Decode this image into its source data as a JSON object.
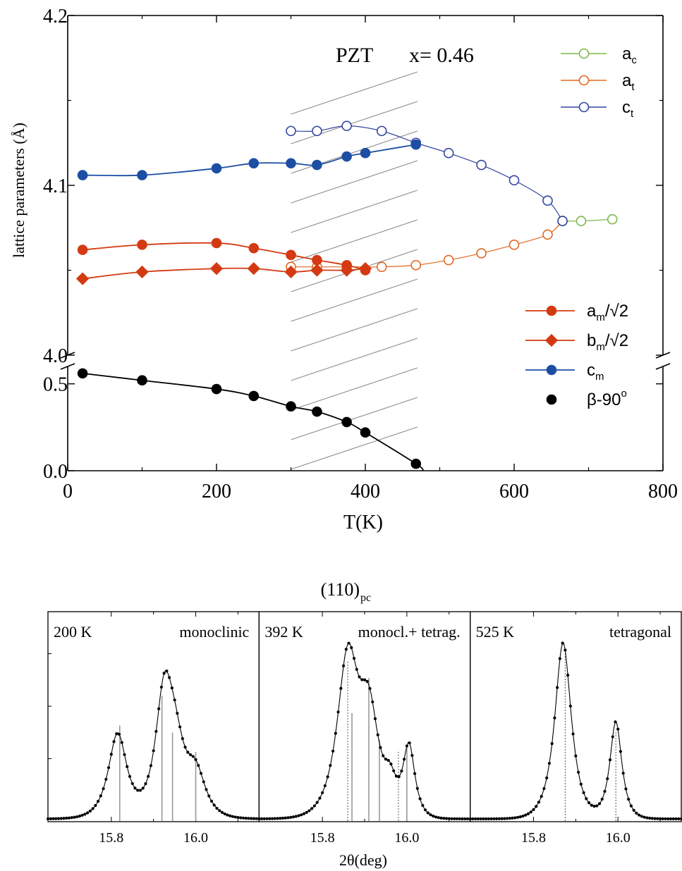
{
  "chart_data": [
    {
      "type": "line",
      "title": "PZT",
      "annotation": "x= 0.46",
      "xlabel": "T(K)",
      "ylabel": "lattice parameters (Å)",
      "xlim": [
        0,
        800
      ],
      "xticks": [
        "0",
        "200",
        "400",
        "600",
        "800"
      ],
      "upper_ylim": [
        4.0,
        4.2
      ],
      "upper_yticks": [
        "4.0",
        "4.1",
        "4.2"
      ],
      "lower_ylim": [
        0.0,
        0.6
      ],
      "lower_yticks": [
        "0.0",
        "0.5"
      ],
      "axis_break": true,
      "hatched_region_x": [
        300,
        470
      ],
      "legend_top": [
        {
          "base": "a",
          "sub": "c",
          "color": "#7db84c",
          "marker": "open-circle"
        },
        {
          "base": "a",
          "sub": "t",
          "color": "#e2681f",
          "marker": "open-circle"
        },
        {
          "base": "c",
          "sub": "t",
          "color": "#3344a0",
          "marker": "open-circle"
        }
      ],
      "legend_bottom": [
        {
          "base": "a",
          "sub": "m",
          "tail": "/√2",
          "color": "#d43a12",
          "marker": "circle"
        },
        {
          "base": "b",
          "sub": "m",
          "tail": "/√2",
          "color": "#d43a12",
          "marker": "diamond"
        },
        {
          "base": "c",
          "sub": "m",
          "tail": "",
          "color": "#1c4ea3",
          "marker": "circle"
        },
        {
          "base": "β-90",
          "sup": "o",
          "color": "#000000",
          "marker": "circle"
        }
      ],
      "series": [
        {
          "key": "am",
          "axis": "upper",
          "color": "#d43a12",
          "marker": "circle",
          "filled": true,
          "x": [
            20,
            100,
            200,
            250,
            300,
            335,
            375,
            400
          ],
          "y": [
            4.062,
            4.065,
            4.066,
            4.063,
            4.059,
            4.056,
            4.053,
            4.05
          ]
        },
        {
          "key": "bm",
          "axis": "upper",
          "color": "#d43a12",
          "marker": "diamond",
          "filled": true,
          "x": [
            20,
            100,
            200,
            250,
            300,
            335,
            375,
            400
          ],
          "y": [
            4.045,
            4.049,
            4.051,
            4.051,
            4.049,
            4.05,
            4.05,
            4.051
          ]
        },
        {
          "key": "cm",
          "axis": "upper",
          "color": "#1c4ea3",
          "marker": "circle",
          "filled": true,
          "x": [
            20,
            100,
            200,
            250,
            300,
            335,
            375,
            400,
            468
          ],
          "y": [
            4.106,
            4.106,
            4.11,
            4.113,
            4.113,
            4.112,
            4.117,
            4.119,
            4.124
          ]
        },
        {
          "key": "ct",
          "axis": "upper",
          "color": "#3344a0",
          "marker": "circle",
          "filled": false,
          "x": [
            300,
            335,
            375,
            422,
            468,
            512,
            556,
            600,
            645,
            665
          ],
          "y": [
            4.132,
            4.132,
            4.135,
            4.132,
            4.125,
            4.119,
            4.112,
            4.103,
            4.091,
            4.079
          ]
        },
        {
          "key": "at",
          "axis": "upper",
          "color": "#e2681f",
          "marker": "circle",
          "filled": false,
          "x": [
            300,
            335,
            375,
            422,
            468,
            512,
            556,
            600,
            645,
            665
          ],
          "y": [
            4.052,
            4.052,
            4.052,
            4.052,
            4.053,
            4.056,
            4.06,
            4.065,
            4.071,
            4.079
          ]
        },
        {
          "key": "ac",
          "axis": "upper",
          "color": "#7db84c",
          "marker": "circle",
          "filled": false,
          "x": [
            665,
            690,
            732
          ],
          "y": [
            4.079,
            4.079,
            4.08
          ]
        },
        {
          "key": "beta",
          "axis": "lower",
          "color": "#000000",
          "marker": "circle",
          "filled": true,
          "x": [
            20,
            100,
            200,
            250,
            300,
            335,
            375,
            400,
            468
          ],
          "y": [
            0.56,
            0.52,
            0.47,
            0.43,
            0.37,
            0.34,
            0.28,
            0.22,
            0.04
          ]
        }
      ]
    },
    {
      "type": "line",
      "title": "(110)",
      "title_sub": "pc",
      "xlabel": "2θ(deg)",
      "xlim": [
        15.65,
        16.15
      ],
      "xticks": [
        "15.8",
        "16.0"
      ],
      "panels": [
        {
          "temperature": "200 K",
          "phase": "monoclinic",
          "peaks": [
            {
              "center": 15.815,
              "height": 0.48,
              "width": 0.028
            },
            {
              "center": 15.925,
              "height": 0.62,
              "width": 0.026
            },
            {
              "center": 15.95,
              "height": 0.33,
              "width": 0.03
            },
            {
              "center": 16.0,
              "height": 0.24,
              "width": 0.03
            }
          ],
          "reflections": [
            {
              "pos": 15.82,
              "height": 0.53
            },
            {
              "pos": 15.92,
              "height": 0.7
            },
            {
              "pos": 15.945,
              "height": 0.49
            },
            {
              "pos": 16.0,
              "height": 0.38
            }
          ],
          "ref_style": "solid"
        },
        {
          "temperature": "392 K",
          "phase": "monocl.+ tetrag.",
          "peaks": [
            {
              "center": 15.86,
              "height": 0.88,
              "width": 0.032
            },
            {
              "center": 15.91,
              "height": 0.55,
              "width": 0.03
            },
            {
              "center": 15.96,
              "height": 0.15,
              "width": 0.018
            },
            {
              "center": 16.005,
              "height": 0.4,
              "width": 0.018
            }
          ],
          "reflections": [
            {
              "pos": 15.86,
              "height": 0.9,
              "style": "dotted"
            },
            {
              "pos": 15.87,
              "height": 0.6
            },
            {
              "pos": 15.91,
              "height": 0.8
            },
            {
              "pos": 15.935,
              "height": 0.45
            },
            {
              "pos": 15.98,
              "height": 0.39,
              "style": "dotted"
            },
            {
              "pos": 16.0,
              "height": 0.42
            }
          ],
          "ref_style": "solid"
        },
        {
          "temperature": "525 K",
          "phase": "tetragonal",
          "peaks": [
            {
              "center": 15.87,
              "height": 1.0,
              "width": 0.025
            },
            {
              "center": 15.995,
              "height": 0.55,
              "width": 0.018
            }
          ],
          "reflections": [
            {
              "pos": 15.875,
              "height": 0.96
            },
            {
              "pos": 15.995,
              "height": 0.5
            }
          ],
          "ref_style": "dotted"
        }
      ]
    }
  ]
}
